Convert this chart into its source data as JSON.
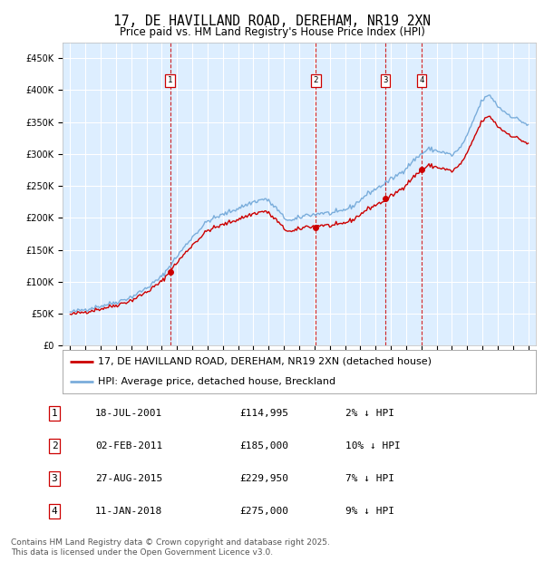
{
  "title": "17, DE HAVILLAND ROAD, DEREHAM, NR19 2XN",
  "subtitle": "Price paid vs. HM Land Registry's House Price Index (HPI)",
  "red_label": "17, DE HAVILLAND ROAD, DEREHAM, NR19 2XN (detached house)",
  "blue_label": "HPI: Average price, detached house, Breckland",
  "footer": "Contains HM Land Registry data © Crown copyright and database right 2025.\nThis data is licensed under the Open Government Licence v3.0.",
  "transactions": [
    {
      "num": 1,
      "date_str": "18-JUL-2001",
      "price": 114995,
      "pct": "2%",
      "direction": "↓"
    },
    {
      "num": 2,
      "date_str": "02-FEB-2011",
      "price": 185000,
      "pct": "10%",
      "direction": "↓"
    },
    {
      "num": 3,
      "date_str": "27-AUG-2015",
      "price": 229950,
      "pct": "7%",
      "direction": "↓"
    },
    {
      "num": 4,
      "date_str": "11-JAN-2018",
      "price": 275000,
      "pct": "9%",
      "direction": "↓"
    }
  ],
  "transaction_dates_decimal": [
    2001.54,
    2011.09,
    2015.65,
    2018.03
  ],
  "sale_prices": [
    114995,
    185000,
    229950,
    275000
  ],
  "ylim": [
    0,
    475000
  ],
  "yticks": [
    0,
    50000,
    100000,
    150000,
    200000,
    250000,
    300000,
    350000,
    400000,
    450000
  ],
  "xlim_start": 1994.5,
  "xlim_end": 2025.5,
  "xticks": [
    1995,
    1996,
    1997,
    1998,
    1999,
    2000,
    2001,
    2002,
    2003,
    2004,
    2005,
    2006,
    2007,
    2008,
    2009,
    2010,
    2011,
    2012,
    2013,
    2014,
    2015,
    2016,
    2017,
    2018,
    2019,
    2020,
    2021,
    2022,
    2023,
    2024,
    2025
  ],
  "red_color": "#cc0000",
  "blue_color": "#7aaddb",
  "bg_plot": "#ddeeff",
  "bg_fig": "#ffffff",
  "grid_color": "#ffffff",
  "title_fontsize": 10.5,
  "subtitle_fontsize": 8.5,
  "axis_fontsize": 7,
  "legend_fontsize": 8,
  "table_fontsize": 8,
  "footer_fontsize": 6.5
}
